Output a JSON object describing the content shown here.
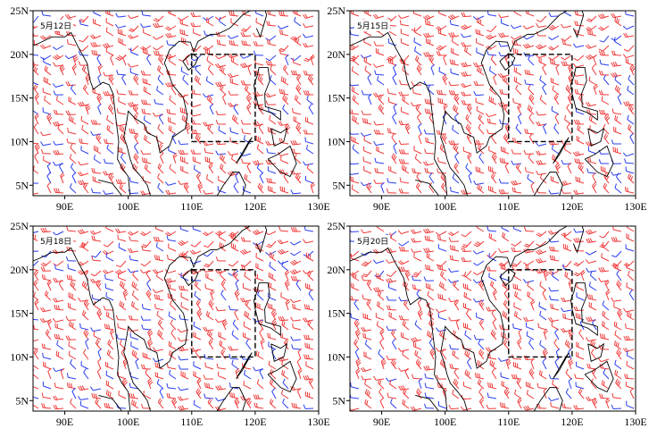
{
  "map_axes": {
    "xlim": [
      85,
      130
    ],
    "ylim": [
      3.8,
      25
    ],
    "xticks": [
      {
        "value": 90,
        "label": "90E"
      },
      {
        "value": 100,
        "label": "100E"
      },
      {
        "value": 110,
        "label": "110E"
      },
      {
        "value": 120,
        "label": "120E"
      },
      {
        "value": 130,
        "label": "130E"
      }
    ],
    "yticks": [
      {
        "value": 5,
        "label": "5N"
      },
      {
        "value": 10,
        "label": "10N"
      },
      {
        "value": 15,
        "label": "15N"
      },
      {
        "value": 20,
        "label": "20N"
      },
      {
        "value": 25,
        "label": "25N"
      }
    ]
  },
  "box": {
    "lon": [
      110,
      120
    ],
    "lat": [
      10,
      20
    ]
  },
  "panels": [
    {
      "label": "5月12日"
    },
    {
      "label": "5月15日"
    },
    {
      "label": "5月18日"
    },
    {
      "label": "5月20日"
    }
  ]
}
